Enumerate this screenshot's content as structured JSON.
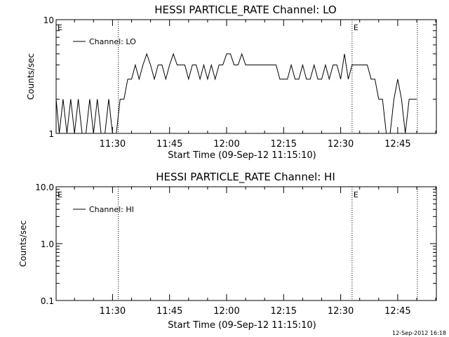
{
  "chart_data": [
    {
      "type": "line",
      "title": "HESSI PARTICLE_RATE Channel: LO",
      "xlabel": "Start Time (09-Sep-12 11:15:10)",
      "ylabel": "Counts/sec",
      "y_scale": "log",
      "ylim": [
        1,
        10
      ],
      "y_ticks": [
        1,
        10
      ],
      "y_tick_labels": [
        "1",
        "10"
      ],
      "x_tick_labels": [
        "11:30",
        "11:45",
        "12:00",
        "12:15",
        "12:30",
        "12:45"
      ],
      "x_ticks": [
        "11:30",
        "11:45",
        "12:00",
        "12:15",
        "12:30",
        "12:45"
      ],
      "xlim": [
        "11:15:10",
        "12:55:10"
      ],
      "legend": {
        "position": "top-left",
        "entries": [
          "Channel: LO"
        ]
      },
      "markers": [
        {
          "time": "11:15:10",
          "label": "E"
        },
        {
          "time": "11:31:30",
          "label": ""
        },
        {
          "time": "12:33:00",
          "label": "E"
        },
        {
          "time": "12:50:10",
          "label": ""
        }
      ],
      "series": [
        {
          "name": "Channel: LO",
          "x": [
            "11:15:10",
            "11:16:00",
            "11:17:00",
            "11:18:00",
            "11:19:00",
            "11:20:00",
            "11:21:00",
            "11:22:00",
            "11:23:00",
            "11:24:00",
            "11:25:00",
            "11:26:00",
            "11:27:00",
            "11:28:00",
            "11:29:00",
            "11:30:00",
            "11:31:00",
            "11:32:00",
            "11:33:00",
            "11:34:00",
            "11:35:00",
            "11:36:00",
            "11:37:00",
            "11:38:00",
            "11:39:00",
            "11:40:00",
            "11:41:00",
            "11:42:00",
            "11:43:00",
            "11:44:00",
            "11:45:00",
            "11:46:00",
            "11:47:00",
            "11:48:00",
            "11:49:00",
            "11:50:00",
            "11:51:00",
            "11:52:00",
            "11:53:00",
            "11:54:00",
            "11:55:00",
            "11:56:00",
            "11:57:00",
            "11:58:00",
            "11:59:00",
            "12:00:00",
            "12:01:00",
            "12:02:00",
            "12:03:00",
            "12:04:00",
            "12:05:00",
            "12:06:00",
            "12:07:00",
            "12:08:00",
            "12:09:00",
            "12:10:00",
            "12:11:00",
            "12:12:00",
            "12:13:00",
            "12:14:00",
            "12:15:00",
            "12:16:00",
            "12:17:00",
            "12:18:00",
            "12:19:00",
            "12:20:00",
            "12:21:00",
            "12:22:00",
            "12:23:00",
            "12:24:00",
            "12:25:00",
            "12:26:00",
            "12:27:00",
            "12:28:00",
            "12:29:00",
            "12:30:00",
            "12:31:00",
            "12:32:00",
            "12:33:00",
            "12:34:00",
            "12:35:00",
            "12:36:00",
            "12:37:00",
            "12:38:00",
            "12:39:00",
            "12:40:00",
            "12:41:00",
            "12:42:00",
            "12:43:00",
            "12:44:00",
            "12:45:00",
            "12:46:00",
            "12:47:00",
            "12:48:00",
            "12:49:00",
            "12:50:00"
          ],
          "values": [
            2,
            1,
            2,
            1,
            2,
            1,
            2,
            1,
            1,
            2,
            1,
            2,
            1,
            1,
            2,
            1,
            1,
            2,
            2,
            3,
            3,
            4,
            3,
            4,
            5,
            4,
            3,
            4,
            4,
            3,
            4,
            5,
            4,
            4,
            4,
            3,
            4,
            4,
            3,
            4,
            3,
            4,
            3,
            4,
            4,
            5,
            5,
            4,
            4,
            5,
            4,
            4,
            4,
            4,
            4,
            4,
            4,
            4,
            4,
            3,
            3,
            3,
            4,
            3,
            3,
            4,
            3,
            3,
            4,
            3,
            3,
            4,
            3,
            4,
            4,
            3,
            5,
            3,
            4,
            4,
            4,
            4,
            4,
            3,
            3,
            2,
            2,
            1,
            1,
            2,
            3,
            2,
            1,
            2,
            2,
            2
          ]
        }
      ]
    },
    {
      "type": "line",
      "title": "HESSI PARTICLE_RATE Channel: HI",
      "xlabel": "Start Time (09-Sep-12 11:15:10)",
      "ylabel": "Counts/sec",
      "y_scale": "log",
      "ylim": [
        0.1,
        10.0
      ],
      "y_ticks": [
        0.1,
        1.0,
        10.0
      ],
      "y_tick_labels": [
        "0.1",
        "1.0",
        "10.0"
      ],
      "x_tick_labels": [
        "11:30",
        "11:45",
        "12:00",
        "12:15",
        "12:30",
        "12:45"
      ],
      "x_ticks": [
        "11:30",
        "11:45",
        "12:00",
        "12:15",
        "12:30",
        "12:45"
      ],
      "xlim": [
        "11:15:10",
        "12:55:10"
      ],
      "legend": {
        "position": "top-left",
        "entries": [
          "Channel: HI"
        ]
      },
      "markers": [
        {
          "time": "11:15:10",
          "label": "E"
        },
        {
          "time": "11:31:30",
          "label": ""
        },
        {
          "time": "12:33:00",
          "label": "E"
        },
        {
          "time": "12:50:10",
          "label": ""
        }
      ],
      "series": [
        {
          "name": "Channel: HI",
          "x": [],
          "values": []
        }
      ]
    }
  ],
  "footer": {
    "timestamp": "12-Sep-2012 16:18"
  }
}
